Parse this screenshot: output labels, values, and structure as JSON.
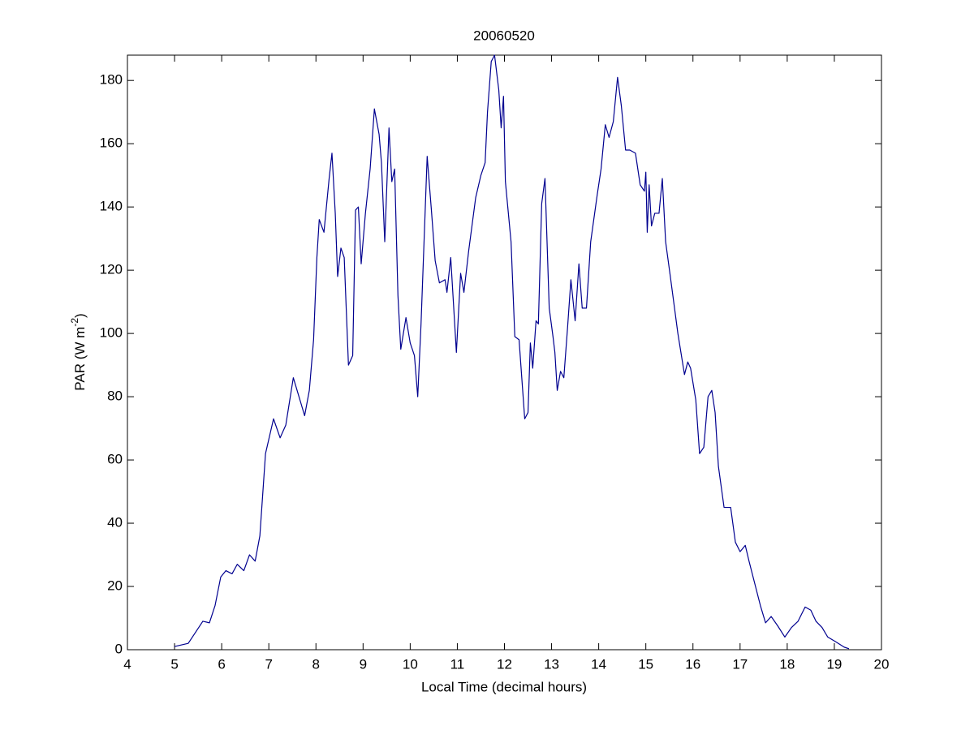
{
  "chart_data": {
    "type": "line",
    "title": "20060520",
    "xlabel": "Local Time (decimal hours)",
    "ylabel": [
      "PAR (W m",
      "-2",
      ")"
    ],
    "color": "#00008f",
    "xlim": [
      4,
      20
    ],
    "ylim": [
      0,
      188
    ],
    "xticks": [
      4,
      5,
      6,
      7,
      8,
      9,
      10,
      11,
      12,
      13,
      14,
      15,
      16,
      17,
      18,
      19,
      20
    ],
    "yticks": [
      0,
      20,
      40,
      60,
      80,
      100,
      120,
      140,
      160,
      180
    ],
    "grid": false,
    "x": [
      5.0,
      5.29,
      5.6,
      5.74,
      5.86,
      5.98,
      6.09,
      6.22,
      6.33,
      6.47,
      6.59,
      6.71,
      6.81,
      6.93,
      7.1,
      7.24,
      7.36,
      7.52,
      7.64,
      7.76,
      7.86,
      7.95,
      8.02,
      8.07,
      8.17,
      8.28,
      8.34,
      8.41,
      8.46,
      8.53,
      8.6,
      8.69,
      8.78,
      8.84,
      8.9,
      8.96,
      9.05,
      9.15,
      9.24,
      9.34,
      9.39,
      9.46,
      9.55,
      9.61,
      9.67,
      9.74,
      9.8,
      9.91,
      10.0,
      10.09,
      10.16,
      10.23,
      10.36,
      10.45,
      10.53,
      10.62,
      10.74,
      10.78,
      10.86,
      10.98,
      11.07,
      11.14,
      11.24,
      11.39,
      11.5,
      11.59,
      11.64,
      11.72,
      11.79,
      11.88,
      11.93,
      11.98,
      12.02,
      12.14,
      12.22,
      12.31,
      12.43,
      12.5,
      12.55,
      12.6,
      12.67,
      12.72,
      12.79,
      12.86,
      12.95,
      13.03,
      13.07,
      13.12,
      13.19,
      13.26,
      13.34,
      13.41,
      13.5,
      13.58,
      13.65,
      13.74,
      13.83,
      13.97,
      14.05,
      14.14,
      14.22,
      14.31,
      14.4,
      14.48,
      14.57,
      14.66,
      14.78,
      14.88,
      14.97,
      15.0,
      15.03,
      15.07,
      15.12,
      15.19,
      15.28,
      15.35,
      15.42,
      15.52,
      15.68,
      15.82,
      15.89,
      15.95,
      16.06,
      16.14,
      16.23,
      16.32,
      16.4,
      16.47,
      16.54,
      16.66,
      16.8,
      16.9,
      17.0,
      17.11,
      17.19,
      17.31,
      17.43,
      17.54,
      17.66,
      17.8,
      17.95,
      18.09,
      18.23,
      18.38,
      18.5,
      18.61,
      18.74,
      18.86,
      19.03,
      19.21,
      19.31
    ],
    "values": [
      1,
      2,
      9,
      8.5,
      14,
      23,
      25,
      24,
      27,
      25,
      30,
      28,
      36,
      62,
      73,
      67,
      71,
      86,
      80,
      74,
      82,
      98,
      124,
      136,
      132,
      149,
      157,
      138,
      118,
      127,
      124,
      90,
      93,
      139,
      140,
      122,
      138,
      152,
      171,
      163,
      154,
      129,
      165,
      148,
      152,
      112,
      95,
      105,
      97,
      93,
      80,
      103,
      156,
      139,
      123,
      116,
      117,
      113,
      124,
      94,
      119,
      113,
      126,
      143,
      150,
      154,
      170,
      186,
      188,
      177,
      165,
      175,
      148,
      129,
      99,
      98,
      73,
      75,
      97,
      89,
      104,
      103,
      141,
      149,
      108,
      99,
      94,
      82,
      88,
      86,
      102,
      117,
      104,
      122,
      108,
      108,
      129,
      144,
      152,
      166,
      162,
      167,
      181,
      172,
      158,
      158,
      157,
      147,
      145,
      151,
      132,
      147,
      134,
      138,
      138,
      149,
      129,
      118,
      100,
      87,
      91,
      89,
      79,
      62,
      64,
      80,
      82,
      75,
      58,
      45,
      45,
      34,
      31,
      33,
      28,
      21,
      14,
      8.5,
      10.5,
      7.5,
      4,
      7,
      9,
      13.5,
      12.5,
      9,
      7,
      4,
      2.5,
      0.8,
      0.3
    ]
  }
}
